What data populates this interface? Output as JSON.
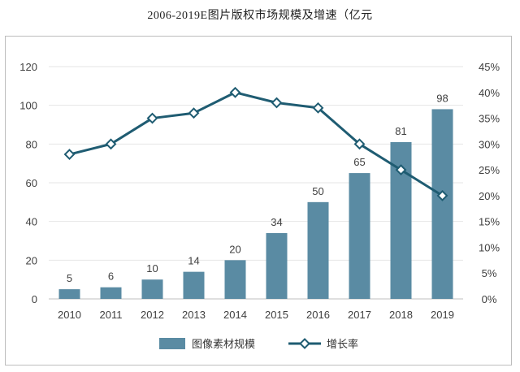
{
  "title": "2006-2019E图片版权市场规模及增速（亿元",
  "colors": {
    "bar": "#5a8ba3",
    "line": "#1f5c72",
    "marker_fill": "#ffffff",
    "grid": "#e6e6e6",
    "axis": "#bfbfbf"
  },
  "chart_data": {
    "type": "bar",
    "categories": [
      "2010",
      "2011",
      "2012",
      "2013",
      "2014",
      "2015",
      "2016",
      "2017",
      "2018",
      "2019"
    ],
    "series": [
      {
        "name": "图像素材规模",
        "type": "bar",
        "axis": "left",
        "values": [
          5,
          6,
          10,
          14,
          20,
          34,
          50,
          65,
          81,
          98
        ]
      },
      {
        "name": "增长率",
        "type": "line",
        "axis": "right",
        "values": [
          28,
          30,
          35,
          36,
          40,
          38,
          37,
          30,
          25,
          20
        ]
      }
    ],
    "y_left": {
      "ylim": [
        0,
        120
      ],
      "ticks": [
        "0",
        "20",
        "40",
        "60",
        "80",
        "100",
        "120"
      ]
    },
    "y_right": {
      "ylim": [
        0,
        45
      ],
      "ticks": [
        "0%",
        "5%",
        "10%",
        "15%",
        "20%",
        "25%",
        "30%",
        "35%",
        "40%",
        "45%"
      ]
    },
    "grid": true,
    "legend": "bottom"
  }
}
